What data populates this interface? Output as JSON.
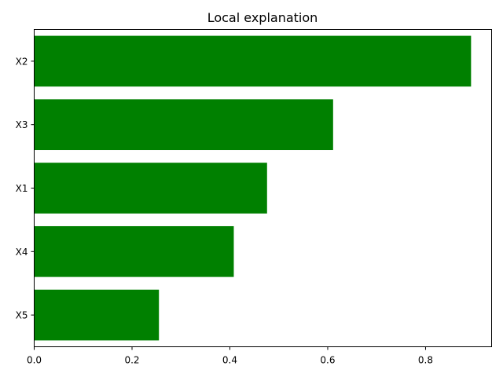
{
  "chart_data": {
    "type": "bar",
    "orientation": "horizontal",
    "title": "Local explanation",
    "xlabel": "",
    "ylabel": "",
    "categories": [
      "X2",
      "X3",
      "X1",
      "X4",
      "X5"
    ],
    "values": [
      0.893,
      0.611,
      0.476,
      0.408,
      0.255
    ],
    "xlim": [
      0,
      0.935
    ],
    "xticks": [
      0.0,
      0.2,
      0.4,
      0.6,
      0.8
    ],
    "xtick_labels": [
      "0.0",
      "0.2",
      "0.4",
      "0.6",
      "0.8"
    ],
    "bar_color": "#008000",
    "grid": false,
    "legend": "none"
  }
}
